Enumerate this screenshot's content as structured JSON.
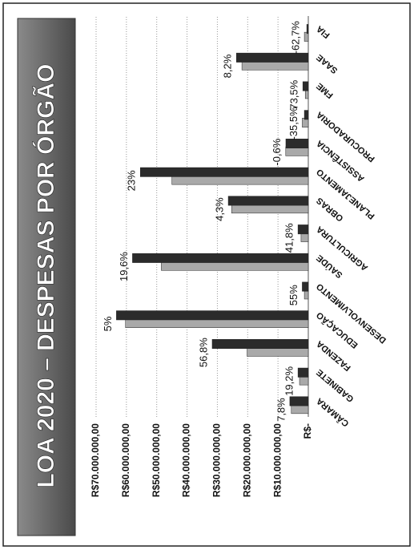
{
  "chart_data": {
    "type": "bar",
    "title": "LOA 2020 – DESPESAS POR ÓRGÃO",
    "categories": [
      "CÂMARA",
      "GABINETE",
      "FAZENDA",
      "EDUCAÇÃO",
      "DESENVOLVIMENTO",
      "SAÚDE",
      "AGRICULTURA",
      "OBRAS",
      "PLANEJAMENTO",
      "ASSISTÊNCIA",
      "PROCURADORIA",
      "FME",
      "SAAE",
      "FIA"
    ],
    "series": [
      {
        "color": "#a9a9a9",
        "values": [
          5600000,
          2900000,
          20200000,
          60300000,
          1300000,
          48500000,
          2400000,
          25300000,
          45000000,
          7450000,
          2000000,
          1000000,
          21900000,
          1300000
        ]
      },
      {
        "color": "#2b2b2b",
        "values": [
          6100000,
          3400000,
          31700000,
          63300000,
          2000000,
          58000000,
          3400000,
          26400000,
          55400000,
          7400000,
          1300000,
          1800000,
          23700000,
          500000
        ]
      }
    ],
    "changes": [
      "7,8%",
      "19,2%",
      "56,8%",
      "5%",
      "55%",
      "19,6%",
      "41,8%",
      "4,3%",
      "23%",
      "-0,6%",
      "-35,5%",
      "73,5%",
      "8,2%",
      "-62,7%"
    ],
    "ylim": [
      0,
      70000000
    ],
    "yticks": [
      {
        "value": 0,
        "label": "R$-"
      },
      {
        "value": 10000000,
        "label": "R$10.000.000,00"
      },
      {
        "value": 20000000,
        "label": "R$20.000.000,00"
      },
      {
        "value": 30000000,
        "label": "R$30.000.000,00"
      },
      {
        "value": 40000000,
        "label": "R$40.000.000,00"
      },
      {
        "value": 50000000,
        "label": "R$50.000.000,00"
      },
      {
        "value": 60000000,
        "label": "R$60.000.000,00"
      },
      {
        "value": 70000000,
        "label": "R$70.000.000,00"
      }
    ],
    "grid": true
  }
}
